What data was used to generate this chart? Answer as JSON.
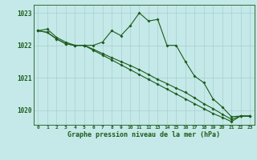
{
  "title": "Graphe pression niveau de la mer (hPa)",
  "bg_color": "#c5e8e8",
  "grid_color": "#a8d0d0",
  "line_color": "#1a5c1a",
  "x_labels": [
    0,
    1,
    2,
    3,
    4,
    5,
    6,
    7,
    8,
    9,
    10,
    11,
    12,
    13,
    14,
    15,
    16,
    17,
    18,
    19,
    20,
    21,
    22,
    23
  ],
  "ylim": [
    1019.55,
    1023.25
  ],
  "yticks": [
    1020,
    1021,
    1022,
    1023
  ],
  "series1": [
    1022.45,
    1022.5,
    1022.25,
    1022.1,
    1022.0,
    1022.0,
    1022.0,
    1022.1,
    1022.45,
    1022.3,
    1022.6,
    1023.0,
    1022.75,
    1022.8,
    1022.0,
    1022.0,
    1021.5,
    1021.05,
    1020.85,
    1020.35,
    1020.1,
    1019.8,
    1019.82,
    1019.82
  ],
  "series2": [
    1022.45,
    1022.4,
    1022.2,
    1022.05,
    1022.0,
    1022.0,
    1021.85,
    1021.7,
    1021.55,
    1021.4,
    1021.25,
    1021.1,
    1020.95,
    1020.8,
    1020.65,
    1020.5,
    1020.35,
    1020.2,
    1020.05,
    1019.9,
    1019.78,
    1019.65,
    1019.82,
    1019.82
  ],
  "series3": [
    1022.45,
    1022.4,
    1022.2,
    1022.05,
    1022.0,
    1022.0,
    1021.88,
    1021.75,
    1021.62,
    1021.5,
    1021.38,
    1021.25,
    1021.1,
    1020.95,
    1020.82,
    1020.68,
    1020.55,
    1020.38,
    1020.2,
    1020.05,
    1019.88,
    1019.72,
    1019.82,
    1019.82
  ]
}
